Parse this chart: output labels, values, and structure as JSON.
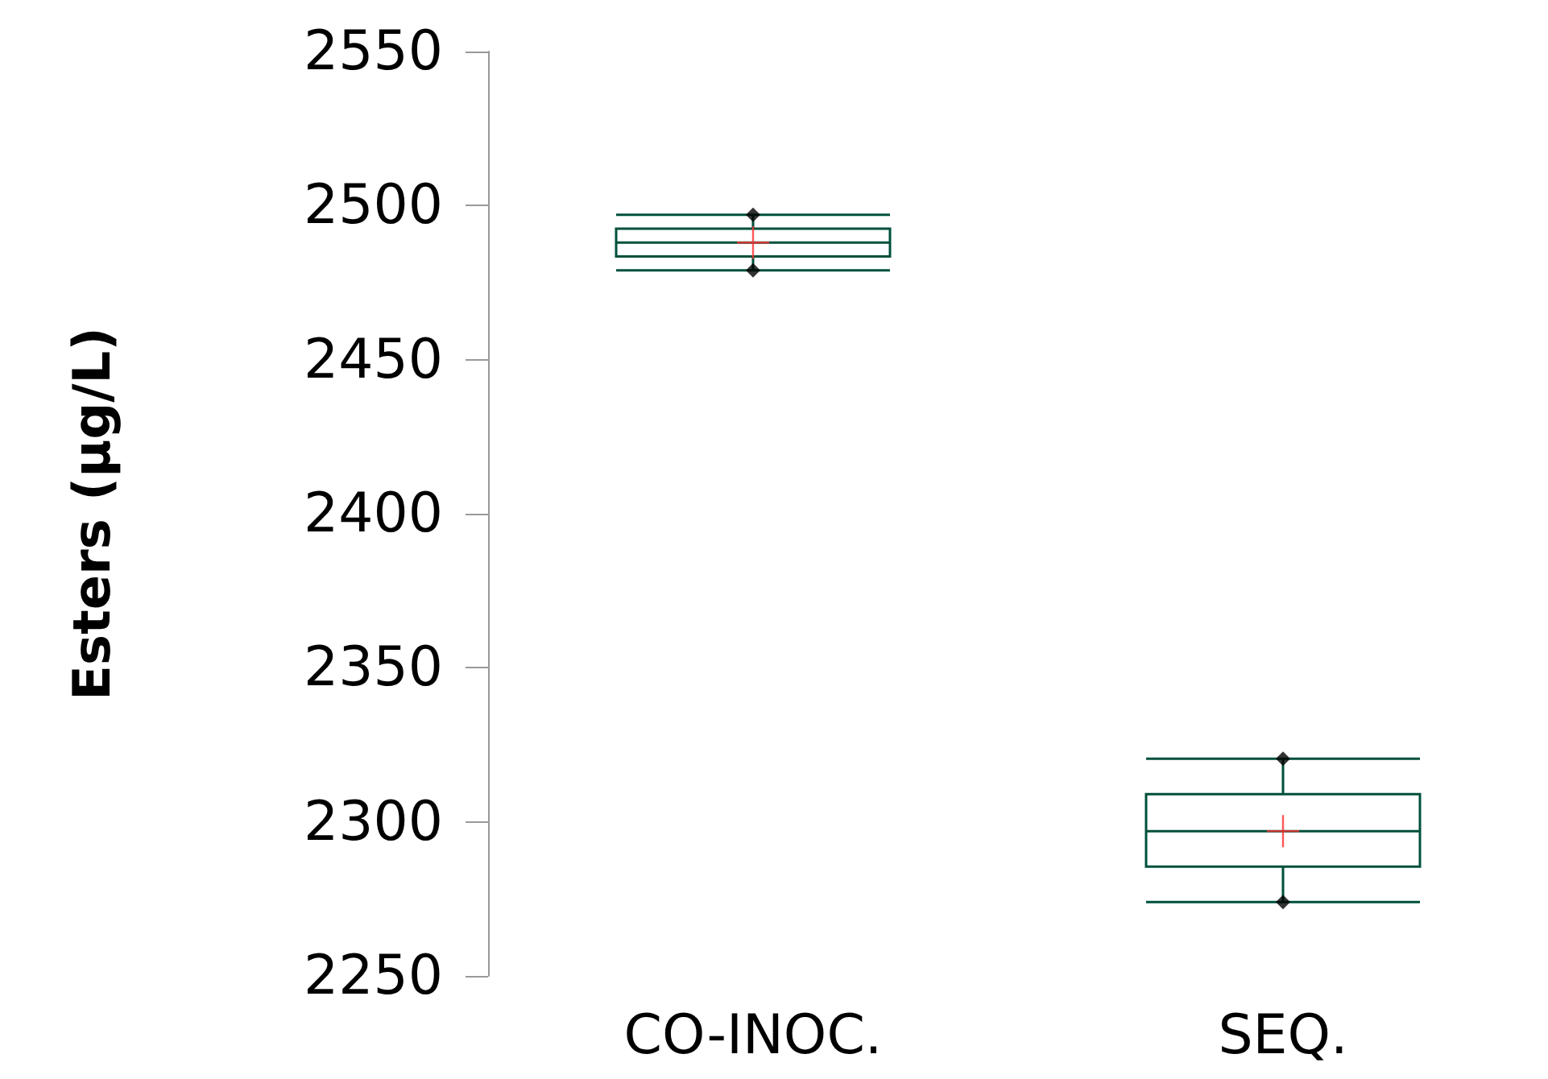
{
  "chart_data": {
    "type": "box",
    "ylabel": "Esters (μg/L)",
    "categories": [
      "CO-INOC.",
      "SEQ."
    ],
    "series": [
      {
        "color": "#00503c",
        "boxes": [
          {
            "low": 2479,
            "q1": 2483.5,
            "median": 2488,
            "q3": 2492.5,
            "high": 2497
          },
          {
            "low": 2274,
            "q1": 2285.5,
            "median": 2297,
            "q3": 2309,
            "high": 2320.5
          }
        ]
      },
      {
        "type": "scatter",
        "color": "#000000",
        "marker": "diamond",
        "x": [
          "CO-INOC.",
          "CO-INOC.",
          "SEQ.",
          "SEQ."
        ],
        "values": [
          2479,
          2497,
          2274,
          2320.5
        ]
      },
      {
        "type": "scatter",
        "color": "#ff3030",
        "marker": "cross",
        "x": [
          "CO-INOC.",
          "SEQ."
        ],
        "values": [
          2488,
          2297
        ]
      }
    ],
    "ylim": [
      2250,
      2550
    ],
    "yticks": [
      2250,
      2300,
      2350,
      2400,
      2450,
      2500,
      2550
    ],
    "grid": false
  }
}
